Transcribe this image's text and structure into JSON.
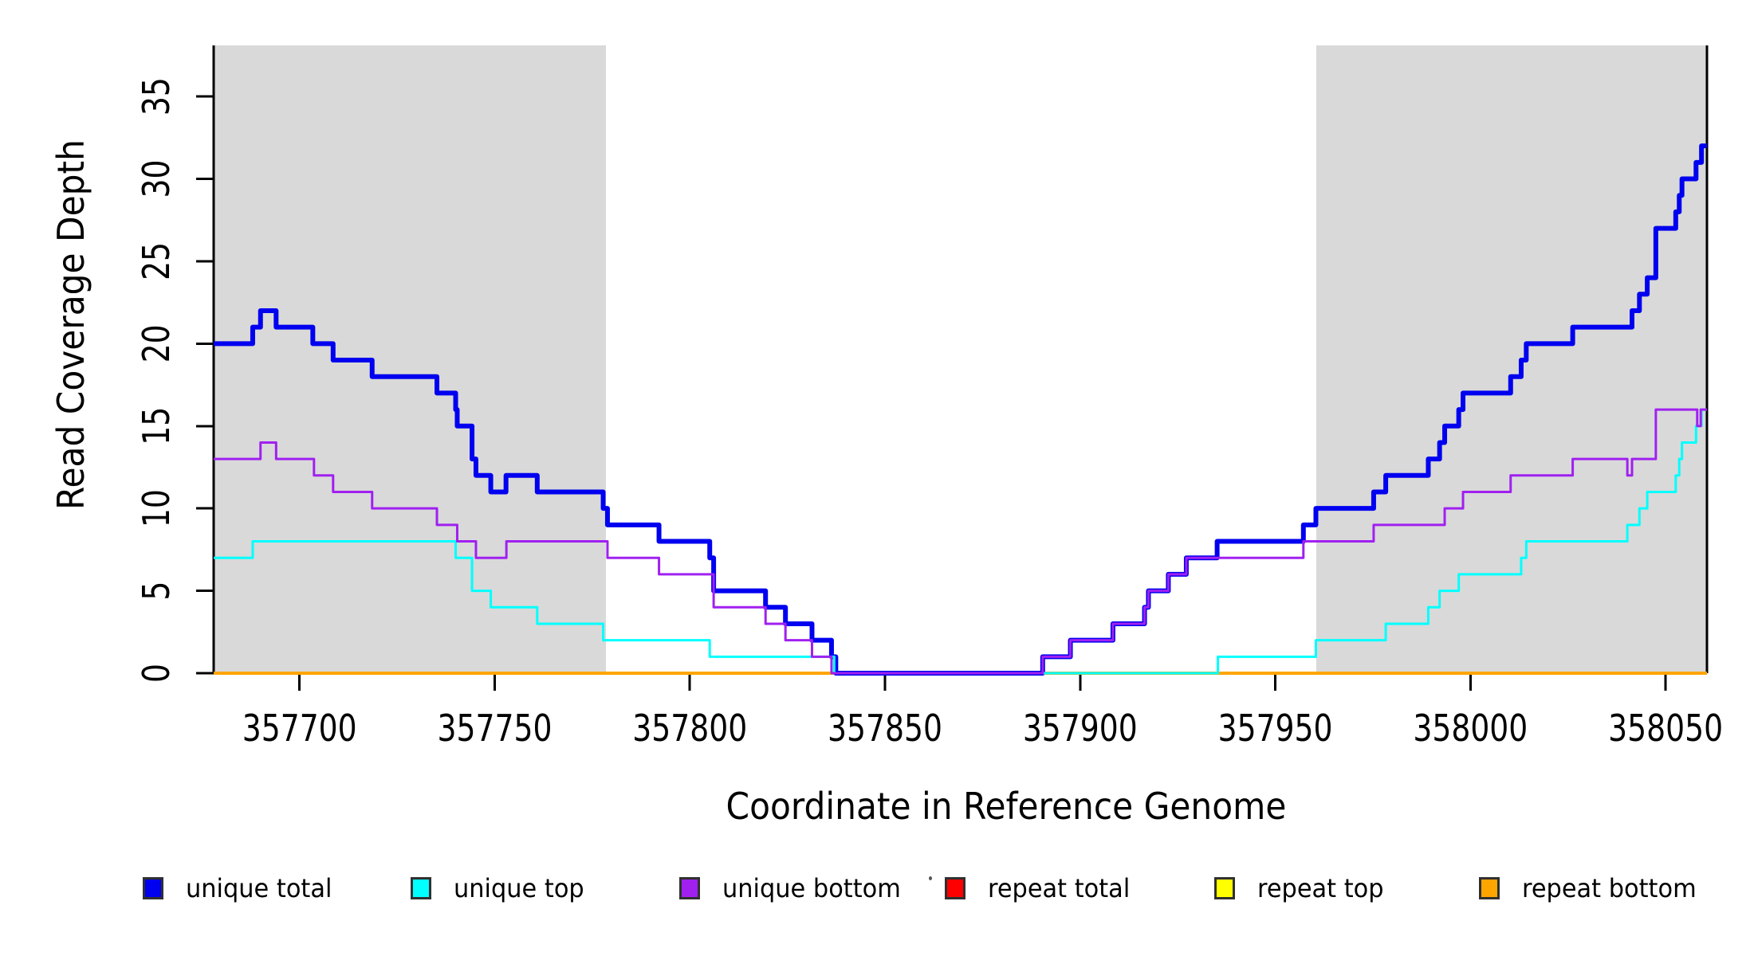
{
  "chart_data": {
    "type": "line",
    "subtype": "step-coverage",
    "title": "",
    "xlabel": "Coordinate in Reference Genome",
    "ylabel": "Read Coverage Depth",
    "xlim": [
      357678,
      358060.6
    ],
    "ylim": [
      0,
      38.1
    ],
    "x_ticks": [
      357700,
      357750,
      357800,
      357850,
      357900,
      357950,
      358000,
      358050
    ],
    "y_ticks": [
      0,
      5,
      10,
      15,
      20,
      25,
      30,
      35
    ],
    "grid": "off",
    "legend_position": "bottom",
    "background_color": "#ffffff",
    "shaded_region_color": "#d9d9d9",
    "shaded_regions": [
      {
        "from": 357678,
        "to": 357778.5
      },
      {
        "from": 357960.5,
        "to": 358060.6
      }
    ],
    "series": [
      {
        "name": "repeat total",
        "color": "#ff0000",
        "width": 4,
        "points": [
          [
            357678,
            0
          ]
        ]
      },
      {
        "name": "repeat top",
        "color": "#ffff00",
        "width": 4,
        "points": [
          [
            357678,
            0
          ]
        ]
      },
      {
        "name": "repeat bottom",
        "color": "#ffa500",
        "width": 4,
        "points": [
          [
            357678,
            0
          ]
        ]
      },
      {
        "name": "unique total",
        "color": "#0000f0",
        "width": 6,
        "points": [
          [
            357678,
            20
          ],
          [
            357688,
            21
          ],
          [
            357690,
            22
          ],
          [
            357694,
            21
          ],
          [
            357703.4,
            20
          ],
          [
            357708.6,
            19
          ],
          [
            357718.6,
            18
          ],
          [
            357735.2,
            17
          ],
          [
            357740.0,
            16
          ],
          [
            357740.4,
            15
          ],
          [
            357744.2,
            13
          ],
          [
            357745.2,
            12
          ],
          [
            357749.0,
            11
          ],
          [
            357752.9,
            12
          ],
          [
            357760.9,
            11
          ],
          [
            357777.8,
            10
          ],
          [
            357778.9,
            9
          ],
          [
            357792.1,
            8
          ],
          [
            357805.1,
            7
          ],
          [
            357806.1,
            5
          ],
          [
            357819.4,
            4
          ],
          [
            357824.5,
            3
          ],
          [
            357831.3,
            2
          ],
          [
            357836.3,
            1
          ],
          [
            357837.4,
            0
          ],
          [
            357890.4,
            1
          ],
          [
            357897.5,
            2
          ],
          [
            357908.4,
            3
          ],
          [
            357916.5,
            4
          ],
          [
            357917.5,
            5
          ],
          [
            357922.6,
            6
          ],
          [
            357927.2,
            7
          ],
          [
            357935.1,
            8
          ],
          [
            357957.2,
            9
          ],
          [
            357960.4,
            10
          ],
          [
            357975.2,
            11
          ],
          [
            357978.3,
            12
          ],
          [
            357989.2,
            13
          ],
          [
            357992.1,
            14
          ],
          [
            357993.4,
            15
          ],
          [
            357997.0,
            16
          ],
          [
            357998.1,
            17
          ],
          [
            358010.3,
            18
          ],
          [
            358013.0,
            19
          ],
          [
            358014.3,
            20
          ],
          [
            358026.2,
            21
          ],
          [
            358041.4,
            22
          ],
          [
            358043.3,
            23
          ],
          [
            358045.3,
            24
          ],
          [
            358047.5,
            27
          ],
          [
            358052.6,
            28
          ],
          [
            358053.5,
            29
          ],
          [
            358054.2,
            30
          ],
          [
            358057.8,
            31
          ],
          [
            358059.2,
            32
          ]
        ]
      },
      {
        "name": "unique top",
        "color": "#00ffff",
        "width": 3,
        "points": [
          [
            357678,
            7
          ],
          [
            357688,
            8
          ],
          [
            357740.0,
            7
          ],
          [
            357744.2,
            5
          ],
          [
            357749.0,
            4
          ],
          [
            357760.9,
            3
          ],
          [
            357777.8,
            2
          ],
          [
            357805.1,
            1
          ],
          [
            357837.0,
            0
          ],
          [
            357935.3,
            1
          ],
          [
            357960.4,
            2
          ],
          [
            357978.3,
            3
          ],
          [
            357989.2,
            4
          ],
          [
            357992.1,
            5
          ],
          [
            357997.0,
            6
          ],
          [
            358013.0,
            7
          ],
          [
            358014.3,
            8
          ],
          [
            358040.2,
            9
          ],
          [
            358043.3,
            10
          ],
          [
            358045.3,
            11
          ],
          [
            358052.6,
            12
          ],
          [
            358053.5,
            13
          ],
          [
            358054.2,
            14
          ],
          [
            358057.8,
            15
          ],
          [
            358059.2,
            16
          ]
        ]
      },
      {
        "name": "unique bottom",
        "color": "#a020f0",
        "width": 3,
        "points": [
          [
            357678,
            13
          ],
          [
            357690,
            14
          ],
          [
            357694,
            13
          ],
          [
            357703.7,
            12
          ],
          [
            357708.6,
            11
          ],
          [
            357718.6,
            10
          ],
          [
            357735.2,
            9
          ],
          [
            357740.4,
            8
          ],
          [
            357745.2,
            7
          ],
          [
            357753.0,
            8
          ],
          [
            357778.9,
            7
          ],
          [
            357792.1,
            6
          ],
          [
            357806.1,
            4
          ],
          [
            357819.4,
            3
          ],
          [
            357824.5,
            2
          ],
          [
            357831.3,
            1
          ],
          [
            357836.3,
            0
          ],
          [
            357890.4,
            1
          ],
          [
            357897.5,
            2
          ],
          [
            357908.4,
            3
          ],
          [
            357916.5,
            4
          ],
          [
            357917.5,
            5
          ],
          [
            357922.6,
            6
          ],
          [
            357927.2,
            7
          ],
          [
            357957.2,
            8
          ],
          [
            357975.2,
            9
          ],
          [
            357993.4,
            10
          ],
          [
            357998.1,
            11
          ],
          [
            358010.3,
            12
          ],
          [
            358026.2,
            13
          ],
          [
            358040.2,
            12
          ],
          [
            358041.4,
            13
          ],
          [
            358047.5,
            16
          ],
          [
            358058.1,
            15
          ],
          [
            358059.0,
            16
          ]
        ]
      }
    ],
    "legend": [
      {
        "label": "unique total",
        "color": "#0000f0"
      },
      {
        "label": "unique top",
        "color": "#00ffff"
      },
      {
        "label": "unique bottom",
        "color": "#a020f0"
      },
      {
        "label": "repeat total",
        "color": "#ff0000"
      },
      {
        "label": "repeat top",
        "color": "#ffff00"
      },
      {
        "label": "repeat bottom",
        "color": "#ffa500"
      }
    ]
  }
}
